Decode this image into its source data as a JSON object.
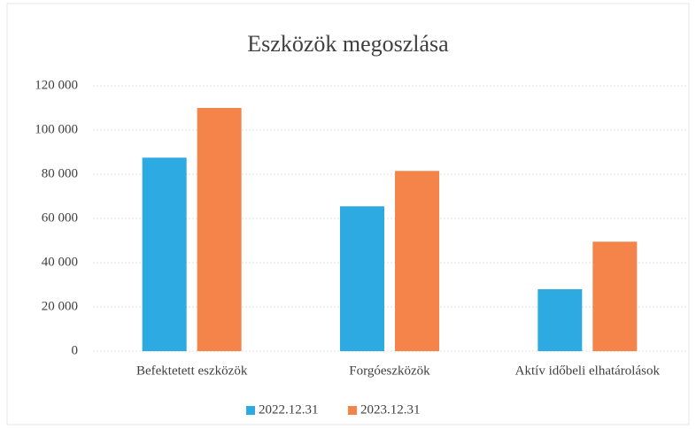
{
  "chart_data": {
    "type": "bar",
    "title": "Eszközök megoszlása",
    "categories": [
      "Befektetett eszközök",
      "Forgóeszközök",
      "Aktív időbeli elhatárolások"
    ],
    "series": [
      {
        "name": "2022.12.31",
        "color": "#2eaae2",
        "values": [
          87500,
          65500,
          28000
        ]
      },
      {
        "name": "2023.12.31",
        "color": "#f5844a",
        "values": [
          110000,
          81500,
          49500
        ]
      }
    ],
    "ylim": [
      0,
      120000
    ],
    "yticks": [
      0,
      {
        "value": 20000,
        "label": "20 000"
      },
      {
        "value": 40000,
        "label": "40 000"
      },
      {
        "value": 60000,
        "label": "60 000"
      },
      {
        "value": 80000,
        "label": "80 000"
      },
      {
        "value": 100000,
        "label": "100 000"
      },
      {
        "value": 120000,
        "label": "120 000"
      }
    ],
    "grid": true,
    "legend": "bottom"
  }
}
